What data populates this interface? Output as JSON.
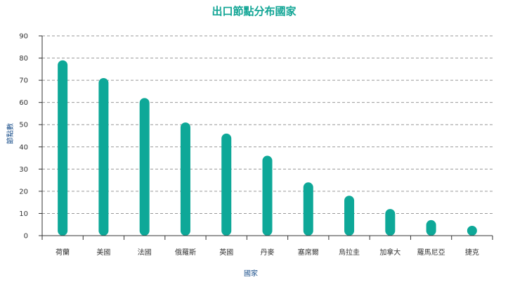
{
  "chart_data": {
    "type": "bar",
    "title": "出口節點分布國家",
    "xlabel": "國家",
    "ylabel": "節點數",
    "categories": [
      "荷蘭",
      "美國",
      "法國",
      "俄羅斯",
      "英國",
      "丹麥",
      "塞席爾",
      "烏拉圭",
      "加拿大",
      "羅馬尼亞",
      "捷克"
    ],
    "values": [
      79,
      71,
      62,
      51,
      46,
      36,
      24,
      18,
      12,
      7,
      4
    ],
    "ylim": [
      0,
      90
    ],
    "yticks": [
      0,
      10,
      20,
      30,
      40,
      50,
      60,
      70,
      80,
      90
    ],
    "grid": true,
    "colors": {
      "bar": "#0ea898",
      "title": "#11a595"
    }
  }
}
